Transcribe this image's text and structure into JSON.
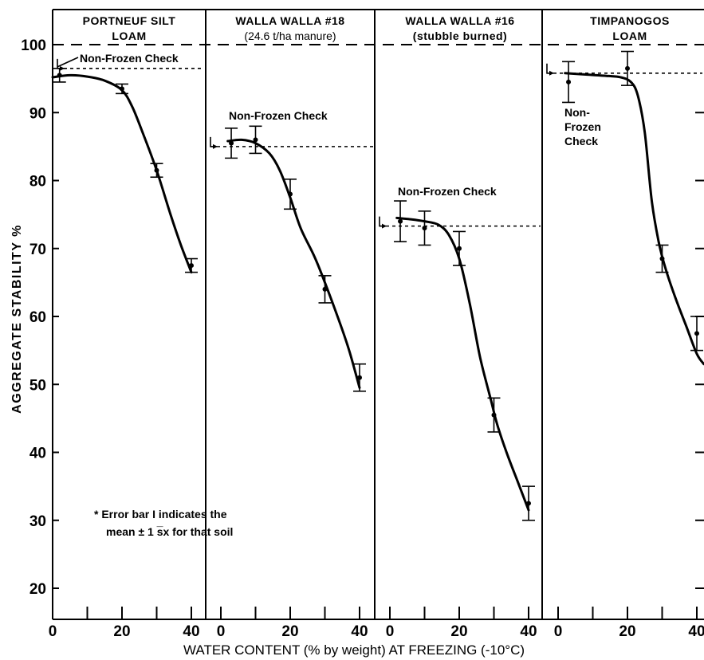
{
  "chart_data": {
    "type": "line",
    "y_axis_title": "AGGREGATE STABILITY %",
    "x_axis_title": "WATER CONTENT (% by weight) AT FREEZING (-10°C)",
    "ylim": [
      18,
      104
    ],
    "xlim": [
      0,
      44
    ],
    "y_ticks": [
      20,
      30,
      40,
      50,
      60,
      70,
      80,
      90,
      100
    ],
    "x_ticks": [
      0,
      20,
      40
    ],
    "x_tick_labels": [
      "0",
      "20",
      "40"
    ],
    "y_tick_labels": [
      "20",
      "30",
      "40",
      "50",
      "60",
      "70",
      "80",
      "90",
      "100"
    ],
    "reference_line_value": 100,
    "footnote": {
      "line1": "* Error bar I indicates the",
      "line2": "mean ± 1 s̅x for that soil"
    },
    "panels": [
      {
        "title_line1": "PORTNEUF SILT",
        "title_line2": "LOAM",
        "check_label": "Non-Frozen Check",
        "check_value": 96.5,
        "points": [
          {
            "x": 2,
            "y": 95.5,
            "err": 1.0
          },
          {
            "x": 20,
            "y": 93.5,
            "err": 0.7
          },
          {
            "x": 30,
            "y": 81.5,
            "err": 1.0
          },
          {
            "x": 40,
            "y": 67.5,
            "err": 1.0
          }
        ],
        "curve": [
          [
            0,
            95.2
          ],
          [
            5,
            95.5
          ],
          [
            10,
            95.3
          ],
          [
            15,
            94.7
          ],
          [
            20,
            93.3
          ],
          [
            23,
            90.8
          ],
          [
            26,
            87
          ],
          [
            30,
            81.5
          ],
          [
            34,
            75
          ],
          [
            37,
            70.5
          ],
          [
            40,
            66.5
          ]
        ]
      },
      {
        "title_line1": "WALLA WALLA #18",
        "title_line2": "(24.6 t/ha manure)",
        "check_label": "Non-Frozen Check",
        "check_value": 85,
        "points": [
          {
            "x": 3,
            "y": 85.5,
            "err": 2.2
          },
          {
            "x": 10,
            "y": 86,
            "err": 2.0
          },
          {
            "x": 20,
            "y": 78,
            "err": 2.2
          },
          {
            "x": 30,
            "y": 64,
            "err": 2.0
          },
          {
            "x": 40,
            "y": 51,
            "err": 2.0
          }
        ],
        "curve": [
          [
            2,
            85.8
          ],
          [
            6,
            86
          ],
          [
            10,
            85.5
          ],
          [
            14,
            84
          ],
          [
            17,
            81.5
          ],
          [
            20,
            77.5
          ],
          [
            23,
            73
          ],
          [
            27,
            68.8
          ],
          [
            30,
            65
          ],
          [
            34,
            59.5
          ],
          [
            37,
            55
          ],
          [
            40,
            49.5
          ]
        ]
      },
      {
        "title_line1": "WALLA WALLA #16",
        "title_line2": "(stubble burned)",
        "check_label": "Non-Frozen Check",
        "check_value": 73.3,
        "points": [
          {
            "x": 3,
            "y": 74,
            "err": 3.0
          },
          {
            "x": 10,
            "y": 73,
            "err": 2.5
          },
          {
            "x": 20,
            "y": 70,
            "err": 2.5
          },
          {
            "x": 30,
            "y": 45.5,
            "err": 2.5
          },
          {
            "x": 40,
            "y": 32.5,
            "err": 2.5
          }
        ],
        "curve": [
          [
            2,
            74.5
          ],
          [
            6,
            74.3
          ],
          [
            10,
            74
          ],
          [
            14,
            73.5
          ],
          [
            17,
            72
          ],
          [
            20,
            68.5
          ],
          [
            23,
            62
          ],
          [
            26,
            54
          ],
          [
            29,
            48
          ],
          [
            31,
            44
          ],
          [
            34,
            39.5
          ],
          [
            37,
            35.5
          ],
          [
            40,
            31.5
          ]
        ]
      },
      {
        "title_line1": "TIMPANOGOS",
        "title_line2": "LOAM",
        "check_label_line1": "Non-",
        "check_label_line2": "Frozen",
        "check_label_line3": "Check",
        "check_value": 95.8,
        "points": [
          {
            "x": 3,
            "y": 94.5,
            "err": 3.0
          },
          {
            "x": 20,
            "y": 96.5,
            "err": 2.5
          },
          {
            "x": 30,
            "y": 68.5,
            "err": 2.0
          },
          {
            "x": 40,
            "y": 57.5,
            "err": 2.5
          }
        ],
        "curve": [
          [
            2,
            95.8
          ],
          [
            8,
            95.6
          ],
          [
            14,
            95.4
          ],
          [
            18,
            95.2
          ],
          [
            21,
            94.5
          ],
          [
            23,
            92.5
          ],
          [
            25,
            87
          ],
          [
            27,
            77
          ],
          [
            29,
            71
          ],
          [
            31,
            67
          ],
          [
            34,
            62.5
          ],
          [
            37,
            58.5
          ],
          [
            40,
            54.5
          ],
          [
            42,
            53
          ]
        ]
      }
    ]
  }
}
